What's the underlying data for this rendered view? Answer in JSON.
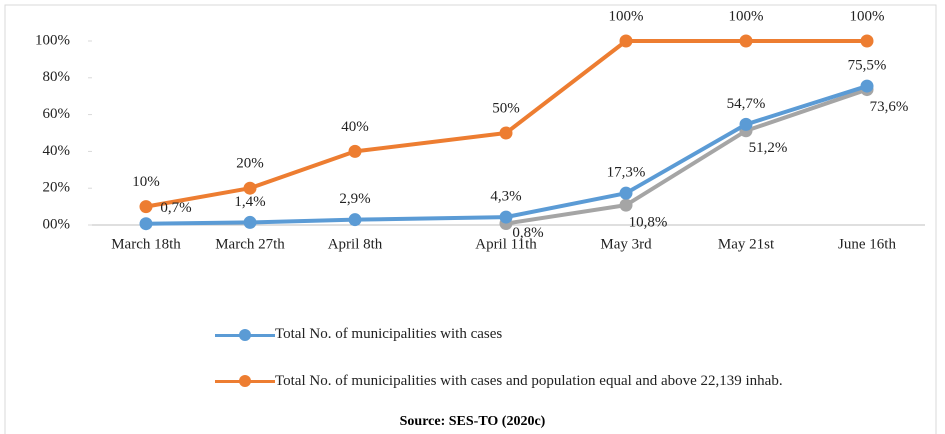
{
  "chart_data": {
    "type": "line",
    "categories": [
      "March 18th",
      "March 27th",
      "April 8th",
      "April 11th",
      "May 3rd",
      "May 21st",
      "June 16th"
    ],
    "series": [
      {
        "name": "Total No. of municipalities with cases",
        "color": "#5b9bd5",
        "values": [
          0.7,
          1.4,
          2.9,
          4.3,
          17.3,
          54.7,
          75.5
        ],
        "value_labels": [
          "0,7%",
          "1,4%",
          "2,9%",
          "4,3%",
          "17,3%",
          "54,7%",
          "75,5%"
        ]
      },
      {
        "name": "Total No. of municipalities with cases and population equal and above 22,139 inhab.",
        "color": "#ed7d31",
        "values": [
          10,
          20,
          40,
          50,
          100,
          100,
          100
        ],
        "value_labels": [
          "10%",
          "20%",
          "40%",
          "50%",
          "100%",
          "100%",
          "100%"
        ]
      },
      {
        "color": "#a5a5a5",
        "values": [
          null,
          null,
          null,
          0.8,
          10.8,
          51.2,
          73.6
        ],
        "value_labels": [
          null,
          null,
          null,
          "0,8%",
          "10,8%",
          "51,2%",
          "73,6%"
        ]
      }
    ],
    "ylim": [
      0,
      100
    ],
    "yticks": [
      {
        "value": 0,
        "label": "00%"
      },
      {
        "value": 20,
        "label": "20%"
      },
      {
        "value": 40,
        "label": "40%"
      },
      {
        "value": 60,
        "label": "60%"
      },
      {
        "value": 80,
        "label": "80%"
      },
      {
        "value": 100,
        "label": "100%"
      }
    ],
    "source": "Source: SES-TO (2020c)"
  }
}
